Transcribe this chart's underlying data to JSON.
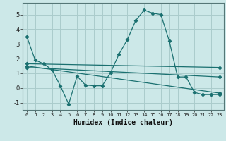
{
  "xlabel": "Humidex (Indice chaleur)",
  "background_color": "#cce8e8",
  "grid_color": "#aacccc",
  "line_color": "#1a7070",
  "xlim": [
    -0.5,
    23.5
  ],
  "ylim": [
    -1.5,
    5.8
  ],
  "yticks": [
    -1,
    0,
    1,
    2,
    3,
    4,
    5
  ],
  "xticks": [
    0,
    1,
    2,
    3,
    4,
    5,
    6,
    7,
    8,
    9,
    10,
    11,
    12,
    13,
    14,
    15,
    16,
    17,
    18,
    19,
    20,
    21,
    22,
    23
  ],
  "series": [
    {
      "x": [
        0,
        1,
        2,
        3,
        4,
        5,
        6,
        7,
        8,
        9,
        10,
        11,
        12,
        13,
        14,
        15,
        16,
        17,
        18,
        19,
        20,
        21,
        22,
        23
      ],
      "y": [
        3.5,
        1.9,
        1.65,
        1.25,
        0.15,
        -1.1,
        0.8,
        0.2,
        0.15,
        0.15,
        1.05,
        2.3,
        3.3,
        4.6,
        5.3,
        5.1,
        5.0,
        3.2,
        0.75,
        0.75,
        -0.3,
        -0.45,
        -0.45,
        -0.45
      ]
    },
    {
      "x": [
        0,
        23
      ],
      "y": [
        1.65,
        1.4
      ]
    },
    {
      "x": [
        0,
        23
      ],
      "y": [
        1.5,
        -0.35
      ]
    },
    {
      "x": [
        0,
        23
      ],
      "y": [
        1.4,
        0.75
      ]
    }
  ]
}
